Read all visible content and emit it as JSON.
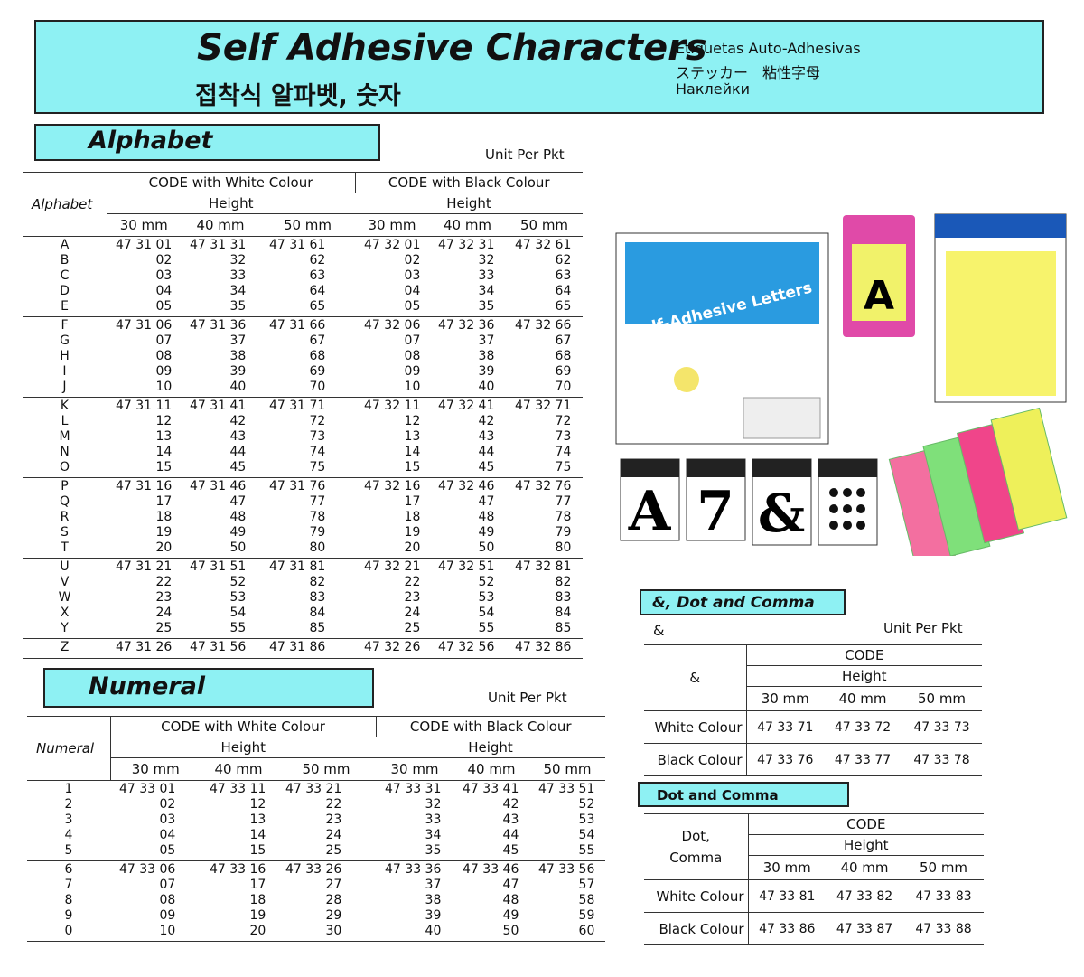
{
  "header": {
    "title": "Self Adhesive Characters",
    "subtitle_ko": "접착식 알파벳, 숫자",
    "lines": [
      "Etiquetas Auto-Adhesivas",
      "ステッカー　粘性字母",
      "Наклейки"
    ]
  },
  "alphabet": {
    "title": "Alphabet",
    "unit": "Unit Per Pkt",
    "head": {
      "corner": "Alphabet",
      "white": "CODE with White Colour",
      "black": "CODE with Black Colour",
      "height_white": "Height",
      "height_black": "Height",
      "sizes": [
        "30 mm",
        "40 mm",
        "50 mm",
        "30 mm",
        "40 mm",
        "50 mm"
      ]
    },
    "groups": [
      {
        "keys": [
          "A",
          "B",
          "C",
          "D",
          "E"
        ],
        "codes": [
          [
            "47 31 01",
            "02",
            "03",
            "04",
            "05"
          ],
          [
            "47 31 31",
            "32",
            "33",
            "34",
            "35"
          ],
          [
            "47 31 61",
            "62",
            "63",
            "64",
            "65"
          ],
          [
            "47 32 01",
            "02",
            "03",
            "04",
            "05"
          ],
          [
            "47 32 31",
            "32",
            "33",
            "34",
            "35"
          ],
          [
            "47 32 61",
            "62",
            "63",
            "64",
            "65"
          ]
        ]
      },
      {
        "keys": [
          "F",
          "G",
          "H",
          "I",
          "J"
        ],
        "codes": [
          [
            "47 31 06",
            "07",
            "08",
            "09",
            "10"
          ],
          [
            "47 31 36",
            "37",
            "38",
            "39",
            "40"
          ],
          [
            "47 31 66",
            "67",
            "68",
            "69",
            "70"
          ],
          [
            "47 32 06",
            "07",
            "08",
            "09",
            "10"
          ],
          [
            "47 32 36",
            "37",
            "38",
            "39",
            "40"
          ],
          [
            "47 32 66",
            "67",
            "68",
            "69",
            "70"
          ]
        ]
      },
      {
        "keys": [
          "K",
          "L",
          "M",
          "N",
          "O"
        ],
        "codes": [
          [
            "47 31 11",
            "12",
            "13",
            "14",
            "15"
          ],
          [
            "47 31 41",
            "42",
            "43",
            "44",
            "45"
          ],
          [
            "47 31 71",
            "72",
            "73",
            "74",
            "75"
          ],
          [
            "47 32 11",
            "12",
            "13",
            "14",
            "15"
          ],
          [
            "47 32 41",
            "42",
            "43",
            "44",
            "45"
          ],
          [
            "47 32 71",
            "72",
            "73",
            "74",
            "75"
          ]
        ]
      },
      {
        "keys": [
          "P",
          "Q",
          "R",
          "S",
          "T"
        ],
        "codes": [
          [
            "47 31 16",
            "17",
            "18",
            "19",
            "20"
          ],
          [
            "47 31 46",
            "47",
            "48",
            "49",
            "50"
          ],
          [
            "47 31 76",
            "77",
            "78",
            "79",
            "80"
          ],
          [
            "47 32 16",
            "17",
            "18",
            "19",
            "20"
          ],
          [
            "47 32 46",
            "47",
            "48",
            "49",
            "50"
          ],
          [
            "47 32 76",
            "77",
            "78",
            "79",
            "80"
          ]
        ]
      },
      {
        "keys": [
          "U",
          "V",
          "W",
          "X",
          "Y"
        ],
        "codes": [
          [
            "47 31 21",
            "22",
            "23",
            "24",
            "25"
          ],
          [
            "47 31 51",
            "52",
            "53",
            "54",
            "55"
          ],
          [
            "47 31 81",
            "82",
            "83",
            "84",
            "85"
          ],
          [
            "47 32 21",
            "22",
            "23",
            "24",
            "25"
          ],
          [
            "47 32 51",
            "52",
            "53",
            "54",
            "55"
          ],
          [
            "47 32 81",
            "82",
            "83",
            "84",
            "85"
          ]
        ]
      },
      {
        "keys": [
          "Z"
        ],
        "codes": [
          [
            "47 31 26"
          ],
          [
            "47 31 56"
          ],
          [
            "47 31 86"
          ],
          [
            "47 32 26"
          ],
          [
            "47 32 56"
          ],
          [
            "47 32 86"
          ]
        ]
      }
    ]
  },
  "numeral": {
    "title": "Numeral",
    "unit": "Unit Per Pkt",
    "head": {
      "corner": "Numeral",
      "white": "CODE with  White Colour",
      "black": "CODE with Black Colour",
      "height_white": "Height",
      "height_black": "Height",
      "sizes": [
        "30 mm",
        "40 mm",
        "50 mm",
        "30 mm",
        "40 mm",
        "50 mm"
      ]
    },
    "groups": [
      {
        "keys": [
          "1",
          "2",
          "3",
          "4",
          "5"
        ],
        "codes": [
          [
            "47 33 01",
            "02",
            "03",
            "04",
            "05"
          ],
          [
            "47 33 11",
            "12",
            "13",
            "14",
            "15"
          ],
          [
            "47 33 21",
            "22",
            "23",
            "24",
            "25"
          ],
          [
            "47 33 31",
            "32",
            "33",
            "34",
            "35"
          ],
          [
            "47 33 41",
            "42",
            "43",
            "44",
            "45"
          ],
          [
            "47 33 51",
            "52",
            "53",
            "54",
            "55"
          ]
        ]
      },
      {
        "keys": [
          "6",
          "7",
          "8",
          "9",
          "0"
        ],
        "codes": [
          [
            "47 33 06",
            "07",
            "08",
            "09",
            "10"
          ],
          [
            "47 33 16",
            "17",
            "18",
            "19",
            "20"
          ],
          [
            "47 33 26",
            "27",
            "28",
            "29",
            "30"
          ],
          [
            "47 33 36",
            "37",
            "38",
            "39",
            "40"
          ],
          [
            "47 33 46",
            "47",
            "48",
            "49",
            "50"
          ],
          [
            "47 33 56",
            "57",
            "58",
            "59",
            "60"
          ]
        ]
      }
    ]
  },
  "ampersand": {
    "title": "&, Dot and Comma",
    "label": "&",
    "unit": "Unit Per Pkt",
    "head": {
      "corner": [
        "&"
      ],
      "code": "CODE",
      "height": "Height",
      "sizes": [
        "30 mm",
        "40 mm",
        "50 mm"
      ]
    },
    "rows": [
      {
        "name": "White Colour",
        "codes": [
          "47 33 71",
          "47 33 72",
          "47 33 73"
        ]
      },
      {
        "name": "Black Colour",
        "codes": [
          "47 33 76",
          "47 33 77",
          "47 33 78"
        ]
      }
    ]
  },
  "dotcomma": {
    "title": "Dot and Comma",
    "head": {
      "corner": [
        "Dot,",
        "Comma"
      ],
      "code": "CODE",
      "height": "Height",
      "sizes": [
        "30 mm",
        "40 mm",
        "50 mm"
      ]
    },
    "rows": [
      {
        "name": "White Colour",
        "codes": [
          "47 33 81",
          "47 33 82",
          "47 33 83"
        ]
      },
      {
        "name": "Black Colour",
        "codes": [
          "47 33 86",
          "47 33 87",
          "47 33 88"
        ]
      }
    ]
  },
  "images": {
    "letters_pack": "Self-Adhesive Letters",
    "cards": [
      "A",
      "7",
      "&"
    ]
  }
}
